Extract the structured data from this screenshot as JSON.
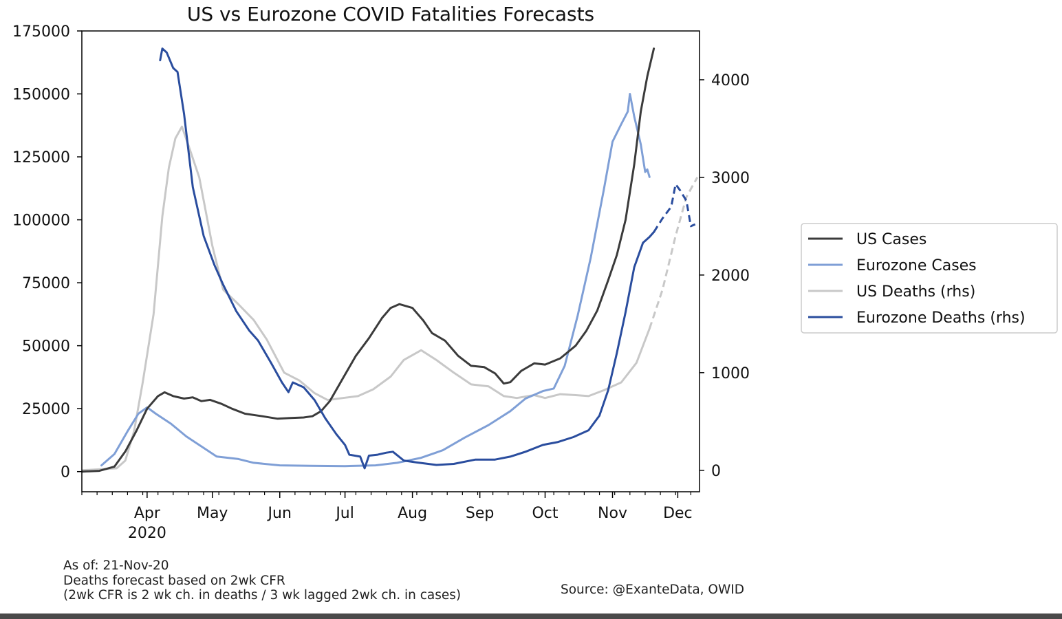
{
  "chart_data": {
    "type": "line",
    "title": "US vs Eurozone COVID Fatalities Forecasts",
    "xlabel": "",
    "ylabel_left": "",
    "ylabel_right": "",
    "x_ticks": [
      "Apr\n2020",
      "May",
      "Jun",
      "Jul",
      "Aug",
      "Sep",
      "Oct",
      "Nov",
      "Dec"
    ],
    "x_tick_dates": [
      "2020-04-01",
      "2020-05-01",
      "2020-06-01",
      "2020-07-01",
      "2020-08-01",
      "2020-09-01",
      "2020-10-01",
      "2020-11-01",
      "2020-12-01"
    ],
    "xlim": [
      "2020-03-02",
      "2020-12-11"
    ],
    "ylim_left": [
      -8000,
      175000
    ],
    "yticks_left": [
      "0",
      "25000",
      "50000",
      "75000",
      "100000",
      "125000",
      "150000",
      "175000"
    ],
    "yticks_left_values": [
      0,
      25000,
      50000,
      75000,
      100000,
      125000,
      150000,
      175000
    ],
    "ylim_right": [
      -220,
      4500
    ],
    "yticks_right": [
      "0",
      "1000",
      "2000",
      "3000",
      "4000"
    ],
    "yticks_right_values": [
      0,
      1000,
      2000,
      3000,
      4000
    ],
    "legend_position": "right",
    "legend": [
      "US Cases",
      "Eurozone Cases",
      "US Deaths (rhs)",
      "Eurozone Deaths (rhs)"
    ],
    "colors": {
      "us_cases": "#3b3b3b",
      "eurozone_cases": "#7f9fd6",
      "us_deaths": "#c8c8c8",
      "eurozone_deaths": "#2a4d9e"
    },
    "series": [
      {
        "name": "US Cases",
        "axis": "left",
        "color": "#3b3b3b",
        "points": [
          [
            "2020-03-02",
            0
          ],
          [
            "2020-03-10",
            300
          ],
          [
            "2020-03-17",
            2000
          ],
          [
            "2020-03-22",
            8000
          ],
          [
            "2020-03-27",
            16000
          ],
          [
            "2020-04-01",
            25000
          ],
          [
            "2020-04-06",
            30000
          ],
          [
            "2020-04-09",
            31500
          ],
          [
            "2020-04-13",
            30000
          ],
          [
            "2020-04-18",
            29000
          ],
          [
            "2020-04-22",
            29500
          ],
          [
            "2020-04-26",
            28000
          ],
          [
            "2020-04-30",
            28500
          ],
          [
            "2020-05-05",
            27000
          ],
          [
            "2020-05-10",
            25000
          ],
          [
            "2020-05-16",
            23000
          ],
          [
            "2020-05-24",
            22000
          ],
          [
            "2020-05-31",
            21000
          ],
          [
            "2020-06-06",
            21300
          ],
          [
            "2020-06-12",
            21500
          ],
          [
            "2020-06-16",
            22000
          ],
          [
            "2020-06-20",
            24000
          ],
          [
            "2020-06-24",
            28000
          ],
          [
            "2020-06-30",
            37000
          ],
          [
            "2020-07-06",
            46000
          ],
          [
            "2020-07-12",
            53000
          ],
          [
            "2020-07-18",
            61000
          ],
          [
            "2020-07-22",
            65000
          ],
          [
            "2020-07-26",
            66500
          ],
          [
            "2020-08-01",
            65000
          ],
          [
            "2020-08-06",
            60000
          ],
          [
            "2020-08-10",
            55000
          ],
          [
            "2020-08-16",
            52000
          ],
          [
            "2020-08-22",
            46000
          ],
          [
            "2020-08-28",
            42000
          ],
          [
            "2020-09-03",
            41500
          ],
          [
            "2020-09-08",
            39000
          ],
          [
            "2020-09-12",
            35000
          ],
          [
            "2020-09-15",
            35500
          ],
          [
            "2020-09-20",
            40000
          ],
          [
            "2020-09-26",
            43000
          ],
          [
            "2020-10-01",
            42500
          ],
          [
            "2020-10-08",
            45000
          ],
          [
            "2020-10-15",
            50000
          ],
          [
            "2020-10-20",
            56000
          ],
          [
            "2020-10-25",
            64000
          ],
          [
            "2020-10-30",
            76000
          ],
          [
            "2020-11-03",
            86000
          ],
          [
            "2020-11-07",
            100000
          ],
          [
            "2020-11-11",
            122000
          ],
          [
            "2020-11-14",
            143000
          ],
          [
            "2020-11-17",
            157000
          ],
          [
            "2020-11-20",
            168000
          ]
        ]
      },
      {
        "name": "Eurozone Cases",
        "axis": "left",
        "color": "#7f9fd6",
        "points": [
          [
            "2020-03-11",
            2500
          ],
          [
            "2020-03-17",
            7000
          ],
          [
            "2020-03-23",
            16000
          ],
          [
            "2020-03-28",
            23000
          ],
          [
            "2020-04-01",
            25500
          ],
          [
            "2020-04-05",
            23000
          ],
          [
            "2020-04-12",
            19000
          ],
          [
            "2020-04-19",
            14000
          ],
          [
            "2020-04-26",
            10000
          ],
          [
            "2020-05-03",
            6000
          ],
          [
            "2020-05-13",
            5000
          ],
          [
            "2020-05-20",
            3500
          ],
          [
            "2020-06-01",
            2500
          ],
          [
            "2020-06-15",
            2300
          ],
          [
            "2020-07-01",
            2200
          ],
          [
            "2020-07-15",
            2500
          ],
          [
            "2020-07-25",
            3500
          ],
          [
            "2020-08-05",
            5500
          ],
          [
            "2020-08-15",
            8500
          ],
          [
            "2020-08-25",
            13500
          ],
          [
            "2020-09-05",
            18500
          ],
          [
            "2020-09-15",
            24000
          ],
          [
            "2020-09-22",
            29000
          ],
          [
            "2020-09-30",
            32000
          ],
          [
            "2020-10-05",
            33000
          ],
          [
            "2020-10-10",
            42000
          ],
          [
            "2020-10-16",
            62000
          ],
          [
            "2020-10-22",
            85000
          ],
          [
            "2020-10-28",
            112000
          ],
          [
            "2020-11-01",
            131000
          ],
          [
            "2020-11-05",
            138000
          ],
          [
            "2020-11-08",
            143000
          ],
          [
            "2020-11-09",
            150000
          ],
          [
            "2020-11-11",
            141000
          ],
          [
            "2020-11-14",
            130000
          ],
          [
            "2020-11-16",
            119000
          ],
          [
            "2020-11-17",
            120000
          ],
          [
            "2020-11-18",
            117000
          ]
        ]
      },
      {
        "name": "US Deaths (rhs)",
        "axis": "right",
        "color": "#c8c8c8",
        "points": [
          [
            "2020-03-02",
            0
          ],
          [
            "2020-03-18",
            20
          ],
          [
            "2020-03-22",
            100
          ],
          [
            "2020-03-26",
            400
          ],
          [
            "2020-03-30",
            900
          ],
          [
            "2020-04-04",
            1600
          ],
          [
            "2020-04-08",
            2600
          ],
          [
            "2020-04-11",
            3100
          ],
          [
            "2020-04-14",
            3400
          ],
          [
            "2020-04-17",
            3520
          ],
          [
            "2020-04-20",
            3330
          ],
          [
            "2020-04-25",
            3000
          ],
          [
            "2020-05-01",
            2300
          ],
          [
            "2020-05-06",
            1850
          ],
          [
            "2020-05-13",
            1700
          ],
          [
            "2020-05-20",
            1540
          ],
          [
            "2020-05-26",
            1340
          ],
          [
            "2020-06-03",
            1000
          ],
          [
            "2020-06-10",
            920
          ],
          [
            "2020-06-17",
            790
          ],
          [
            "2020-06-23",
            720
          ],
          [
            "2020-06-30",
            740
          ],
          [
            "2020-07-07",
            760
          ],
          [
            "2020-07-14",
            830
          ],
          [
            "2020-07-22",
            960
          ],
          [
            "2020-07-28",
            1130
          ],
          [
            "2020-08-05",
            1230
          ],
          [
            "2020-08-12",
            1130
          ],
          [
            "2020-08-20",
            1000
          ],
          [
            "2020-08-28",
            880
          ],
          [
            "2020-09-05",
            860
          ],
          [
            "2020-09-12",
            760
          ],
          [
            "2020-09-18",
            740
          ],
          [
            "2020-09-26",
            770
          ],
          [
            "2020-10-01",
            740
          ],
          [
            "2020-10-08",
            780
          ],
          [
            "2020-10-15",
            770
          ],
          [
            "2020-10-21",
            760
          ],
          [
            "2020-10-28",
            820
          ],
          [
            "2020-11-05",
            900
          ],
          [
            "2020-11-12",
            1100
          ],
          [
            "2020-11-18",
            1450
          ]
        ],
        "forecast_points": [
          [
            "2020-11-18",
            1450
          ],
          [
            "2020-11-24",
            1850
          ],
          [
            "2020-11-30",
            2400
          ],
          [
            "2020-12-05",
            2800
          ],
          [
            "2020-12-10",
            3000
          ]
        ]
      },
      {
        "name": "Eurozone Deaths (rhs)",
        "axis": "right",
        "color": "#2a4d9e",
        "points": [
          [
            "2020-04-07",
            4200
          ],
          [
            "2020-04-08",
            4320
          ],
          [
            "2020-04-10",
            4280
          ],
          [
            "2020-04-13",
            4120
          ],
          [
            "2020-04-15",
            4080
          ],
          [
            "2020-04-18",
            3650
          ],
          [
            "2020-04-22",
            2900
          ],
          [
            "2020-04-27",
            2400
          ],
          [
            "2020-05-02",
            2100
          ],
          [
            "2020-05-06",
            1900
          ],
          [
            "2020-05-12",
            1630
          ],
          [
            "2020-05-18",
            1430
          ],
          [
            "2020-05-22",
            1330
          ],
          [
            "2020-05-28",
            1100
          ],
          [
            "2020-06-02",
            900
          ],
          [
            "2020-06-05",
            800
          ],
          [
            "2020-06-07",
            900
          ],
          [
            "2020-06-12",
            850
          ],
          [
            "2020-06-17",
            720
          ],
          [
            "2020-06-22",
            530
          ],
          [
            "2020-06-27",
            370
          ],
          [
            "2020-07-01",
            260
          ],
          [
            "2020-07-03",
            160
          ],
          [
            "2020-07-08",
            140
          ],
          [
            "2020-07-10",
            20
          ],
          [
            "2020-07-12",
            150
          ],
          [
            "2020-07-16",
            160
          ],
          [
            "2020-07-20",
            180
          ],
          [
            "2020-07-23",
            190
          ],
          [
            "2020-07-28",
            100
          ],
          [
            "2020-08-03",
            80
          ],
          [
            "2020-08-12",
            55
          ],
          [
            "2020-08-20",
            65
          ],
          [
            "2020-08-30",
            110
          ],
          [
            "2020-09-08",
            110
          ],
          [
            "2020-09-15",
            140
          ],
          [
            "2020-09-22",
            190
          ],
          [
            "2020-09-30",
            260
          ],
          [
            "2020-10-07",
            290
          ],
          [
            "2020-10-14",
            340
          ],
          [
            "2020-10-21",
            410
          ],
          [
            "2020-10-26",
            560
          ],
          [
            "2020-10-30",
            820
          ],
          [
            "2020-11-03",
            1200
          ],
          [
            "2020-11-07",
            1620
          ],
          [
            "2020-11-11",
            2080
          ],
          [
            "2020-11-15",
            2330
          ],
          [
            "2020-11-18",
            2390
          ],
          [
            "2020-11-20",
            2440
          ]
        ],
        "forecast_points": [
          [
            "2020-11-20",
            2440
          ],
          [
            "2020-11-24",
            2580
          ],
          [
            "2020-11-28",
            2700
          ],
          [
            "2020-11-30",
            2930
          ],
          [
            "2020-12-02",
            2870
          ],
          [
            "2020-12-05",
            2760
          ],
          [
            "2020-12-07",
            2500
          ],
          [
            "2020-12-09",
            2520
          ]
        ]
      }
    ]
  },
  "notes": {
    "line1": "As of: 21-Nov-20",
    "line2": "Deaths forecast based on 2wk CFR",
    "line3": "(2wk CFR is 2 wk ch. in deaths / 3 wk lagged 2wk ch. in cases)"
  },
  "source": "Source: @ExanteData, OWID"
}
